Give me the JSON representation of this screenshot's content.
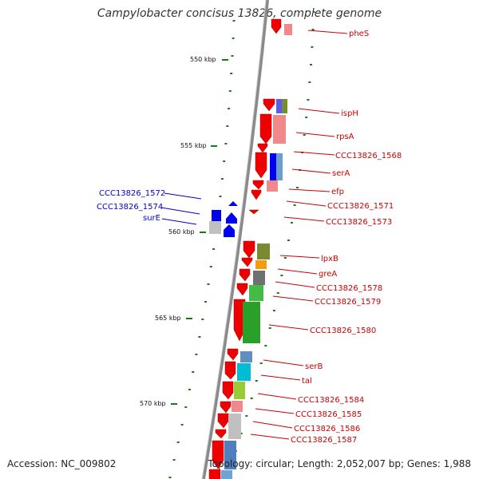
{
  "title": "Campylobacter concisus 13826, complete genome",
  "footer": {
    "accession": "Accession: NC_009802",
    "summary": "Topology: circular; Length: 2,052,007 bp; Genes: 1,988"
  },
  "kbp_ticks": [
    "550 kbp",
    "555 kbp",
    "560 kbp",
    "565 kbp",
    "570 kbp"
  ],
  "right_labels": [
    "pheS",
    "ispH",
    "rpsA",
    "CCC13826_1568",
    "serA",
    "efp",
    "CCC13826_1571",
    "CCC13826_1573",
    "lpxB",
    "greA",
    "CCC13826_1578",
    "CCC13826_1579",
    "CCC13826_1580",
    "serB",
    "tal",
    "CCC13826_1584",
    "CCC13826_1585",
    "CCC13826_1586",
    "CCC13826_1587"
  ],
  "left_labels": [
    "CCC13826_1572",
    "CCC13826_1574",
    "surE"
  ],
  "colors": {
    "forward_gene": "#ee0000",
    "reverse_gene": "#0000ee",
    "backbone": "#888888",
    "tick": "#1a7a1a",
    "right_label": "#cc0000",
    "left_label": "#0000cc"
  }
}
